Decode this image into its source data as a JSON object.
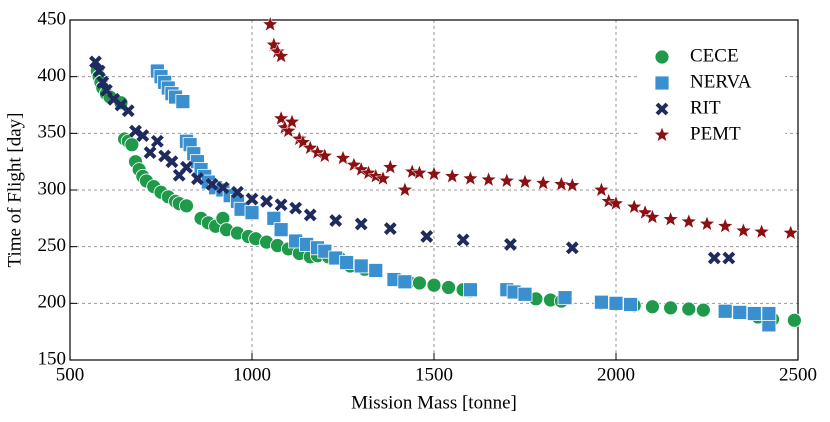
{
  "chart_data": {
    "type": "scatter",
    "xlabel": "Mission Mass [tonne]",
    "ylabel": "Time of Flight [day]",
    "xlim": [
      500,
      2500
    ],
    "ylim": [
      150,
      450
    ],
    "xticks": [
      500,
      1000,
      1500,
      2000,
      2500
    ],
    "yticks": [
      150,
      200,
      250,
      300,
      350,
      400,
      450
    ],
    "grid": true,
    "legend": "upper right",
    "series": [
      {
        "name": "CECE",
        "color": "#1e9a4a",
        "marker": "circle",
        "x": [
          575,
          580,
          585,
          590,
          600,
          610,
          640,
          650,
          660,
          670,
          680,
          690,
          700,
          710,
          730,
          750,
          770,
          790,
          800,
          820,
          860,
          880,
          900,
          920,
          930,
          960,
          990,
          1010,
          1040,
          1070,
          1100,
          1130,
          1160,
          1180,
          1210,
          1240,
          1270,
          1310,
          1340,
          1400,
          1430,
          1460,
          1500,
          1540,
          1580,
          1600,
          1780,
          1820,
          1850,
          1960,
          2000,
          2050,
          2100,
          2150,
          2200,
          2240,
          2390,
          2430,
          2490
        ],
        "values": [
          405,
          400,
          395,
          390,
          385,
          382,
          377,
          345,
          343,
          340,
          325,
          318,
          312,
          308,
          303,
          298,
          294,
          290,
          288,
          286,
          275,
          271,
          268,
          275,
          265,
          262,
          259,
          257,
          254,
          251,
          248,
          244,
          241,
          242,
          241,
          240,
          233,
          230,
          229,
          221,
          219,
          218,
          216,
          214,
          212,
          211,
          204,
          203,
          202,
          200,
          199,
          198,
          197,
          196,
          195,
          194,
          188,
          186,
          185
        ]
      },
      {
        "name": "NERVA",
        "color": "#3a8fcf",
        "marker": "square",
        "x": [
          740,
          750,
          760,
          770,
          780,
          790,
          810,
          820,
          830,
          840,
          850,
          860,
          870,
          880,
          900,
          920,
          940,
          960,
          970,
          1000,
          1060,
          1080,
          1120,
          1150,
          1180,
          1200,
          1230,
          1260,
          1300,
          1340,
          1390,
          1420,
          1600,
          1700,
          1720,
          1750,
          1860,
          1960,
          2000,
          2040,
          2300,
          2340,
          2380,
          2420,
          2420
        ],
        "values": [
          405,
          400,
          395,
          390,
          385,
          382,
          378,
          343,
          340,
          332,
          325,
          318,
          312,
          307,
          302,
          300,
          295,
          290,
          283,
          280,
          275,
          265,
          255,
          252,
          249,
          246,
          240,
          236,
          233,
          229,
          221,
          219,
          212,
          212,
          210,
          208,
          205,
          201,
          200,
          199,
          193,
          192,
          191,
          181,
          191
        ]
      },
      {
        "name": "RIT",
        "color": "#1f2a5e",
        "marker": "x",
        "x": [
          570,
          580,
          590,
          600,
          620,
          640,
          660,
          680,
          700,
          720,
          740,
          760,
          780,
          800,
          820,
          850,
          890,
          920,
          960,
          1000,
          1040,
          1080,
          1120,
          1160,
          1230,
          1300,
          1380,
          1480,
          1580,
          1710,
          1880,
          2270,
          2310
        ],
        "values": [
          413,
          405,
          395,
          388,
          380,
          375,
          370,
          352,
          348,
          333,
          343,
          330,
          325,
          313,
          320,
          310,
          305,
          302,
          298,
          292,
          290,
          287,
          284,
          278,
          273,
          270,
          266,
          259,
          256,
          252,
          249,
          240,
          240
        ]
      },
      {
        "name": "PEMT",
        "color": "#8a1014",
        "marker": "star",
        "x": [
          1050,
          1060,
          1070,
          1080,
          1080,
          1090,
          1100,
          1110,
          1130,
          1140,
          1160,
          1180,
          1200,
          1250,
          1280,
          1300,
          1320,
          1340,
          1360,
          1380,
          1420,
          1440,
          1460,
          1500,
          1550,
          1600,
          1650,
          1700,
          1750,
          1800,
          1850,
          1880,
          1960,
          1980,
          2000,
          2050,
          2080,
          2100,
          2150,
          2200,
          2250,
          2300,
          2350,
          2400,
          2480
        ],
        "values": [
          446,
          428,
          422,
          418,
          363,
          355,
          352,
          360,
          345,
          342,
          337,
          333,
          330,
          328,
          322,
          318,
          315,
          312,
          310,
          320,
          300,
          316,
          315,
          314,
          312,
          310,
          309,
          308,
          307,
          306,
          305,
          304,
          300,
          290,
          288,
          285,
          280,
          276,
          274,
          272,
          270,
          268,
          264,
          263,
          262
        ]
      }
    ]
  }
}
